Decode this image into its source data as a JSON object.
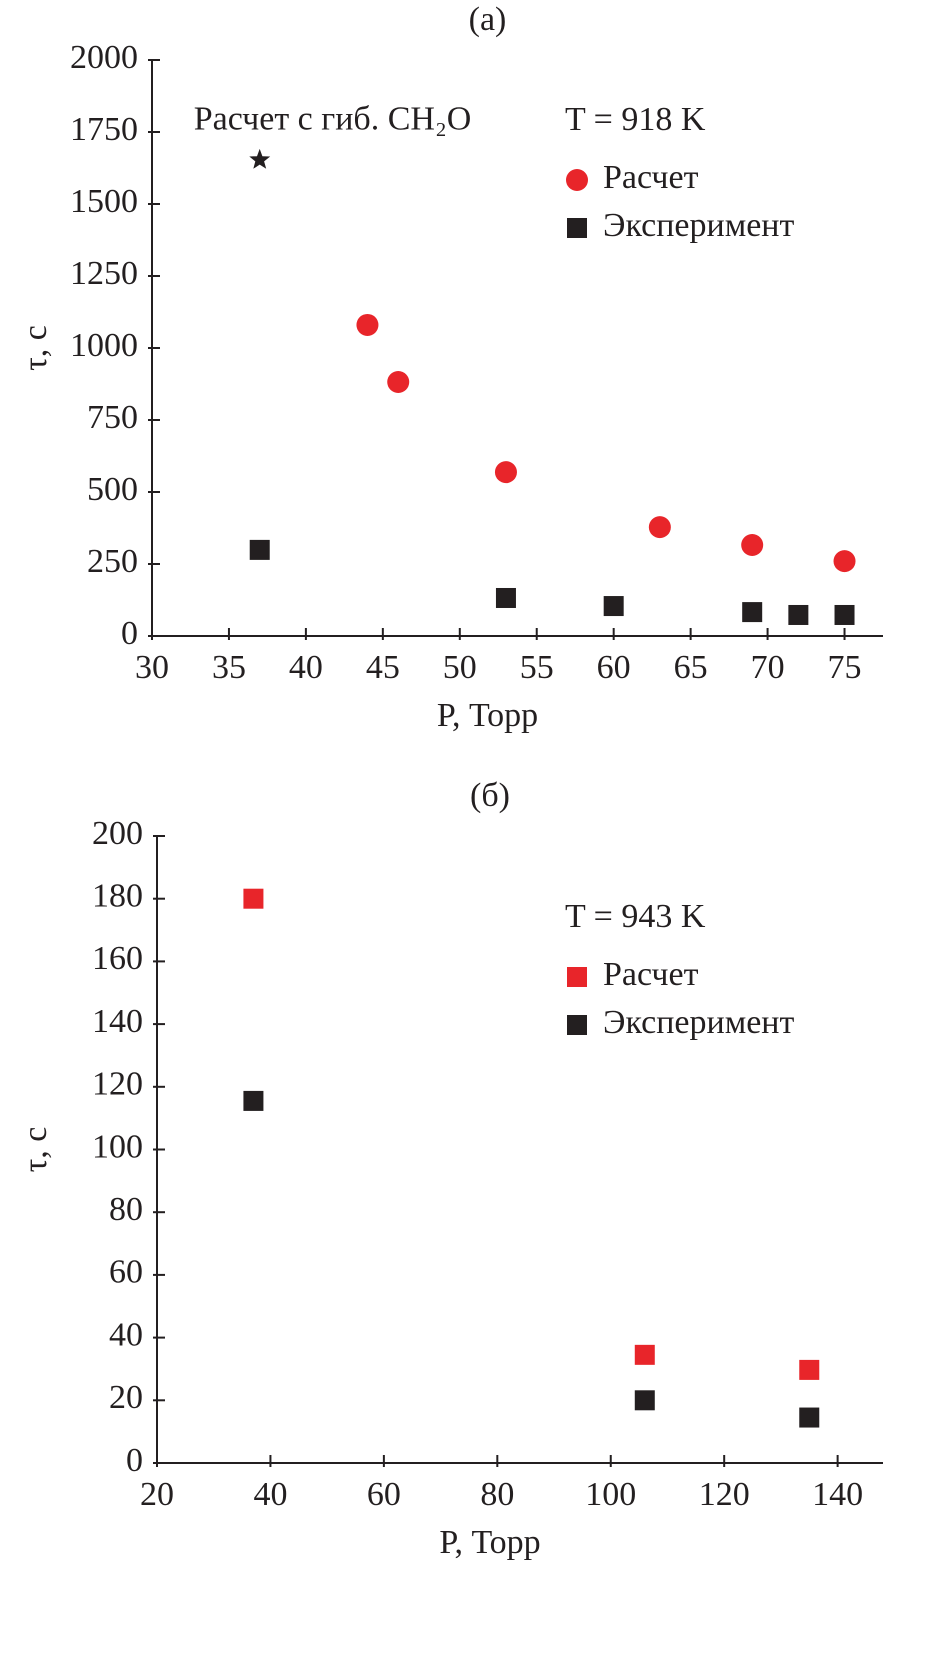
{
  "chart_data": [
    {
      "type": "scatter",
      "title": "(а)",
      "xlabel": "P, Торр",
      "ylabel": "τ, с",
      "annotation": "T = 918 K",
      "xlim": [
        30,
        77.5
      ],
      "ylim": [
        0,
        2000
      ],
      "xticks": [
        30,
        35,
        40,
        45,
        50,
        55,
        60,
        65,
        70,
        75
      ],
      "yticks": [
        0,
        250,
        500,
        750,
        1000,
        1250,
        1500,
        1750,
        2000
      ],
      "series": [
        {
          "name": "Расчет",
          "color": "#e8252a",
          "marker": "circle",
          "x": [
            44,
            46,
            53,
            63,
            69,
            75
          ],
          "values": [
            1080,
            882,
            569,
            378,
            316,
            260
          ]
        },
        {
          "name": "Эксперимент",
          "color": "#231f20",
          "marker": "square",
          "x": [
            37,
            53,
            60,
            69,
            72,
            75
          ],
          "values": [
            299,
            132,
            104,
            83,
            73,
            73
          ]
        },
        {
          "name": "Расчет с гиб. CH₂O",
          "color": "#231f20",
          "marker": "star",
          "label_at_point": true,
          "x": [
            37
          ],
          "values": [
            1653
          ]
        }
      ]
    },
    {
      "type": "scatter",
      "title": "(б)",
      "xlabel": "P, Торр",
      "ylabel": "τ, с",
      "annotation": "T = 943 K",
      "xlim": [
        20,
        148
      ],
      "ylim": [
        0,
        200
      ],
      "xticks": [
        20,
        40,
        60,
        80,
        100,
        120,
        140
      ],
      "yticks": [
        0,
        20,
        40,
        60,
        80,
        100,
        120,
        140,
        160,
        180,
        200
      ],
      "series": [
        {
          "name": "Расчет",
          "color": "#e8252a",
          "marker": "square",
          "x": [
            37,
            106,
            135
          ],
          "values": [
            180,
            34.5,
            29.7
          ]
        },
        {
          "name": "Эксперимент",
          "color": "#231f20",
          "marker": "square",
          "x": [
            37,
            106,
            135
          ],
          "values": [
            115.5,
            20,
            14.5
          ]
        }
      ]
    }
  ]
}
